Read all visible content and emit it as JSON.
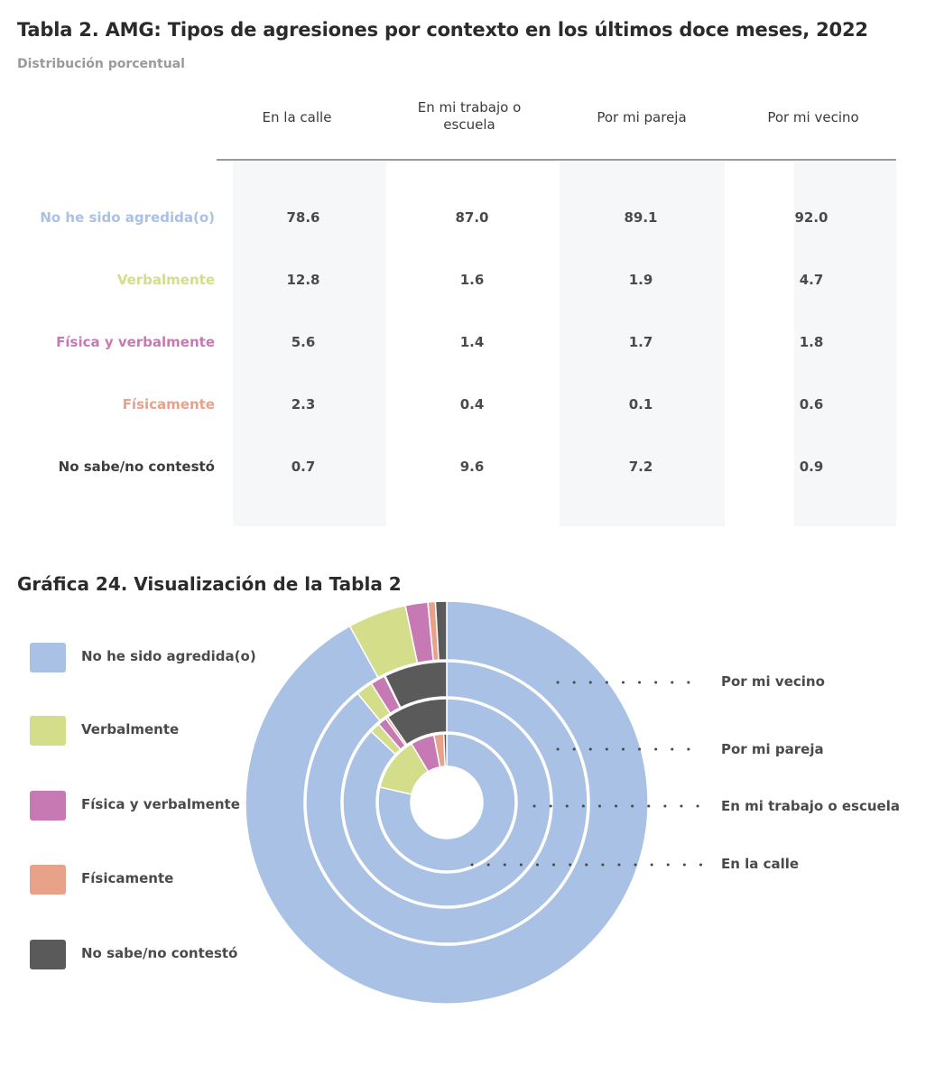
{
  "table": {
    "title": "Tabla 2. AMG: Tipos de agresiones por contexto en los últimos doce meses, 2022",
    "subtitle": "Distribución porcentual",
    "columns": [
      "En la calle",
      "En mi trabajo o escuela",
      "Por mi pareja",
      "Por mi vecino"
    ],
    "rows": [
      {
        "label": "No he sido agredida(o)",
        "color": "#a9c1e4",
        "values": [
          "78.6",
          "87.0",
          "89.1",
          "92.0"
        ]
      },
      {
        "label": "Verbalmente",
        "color": "#d3dd8a",
        "values": [
          "12.8",
          "1.6",
          "1.9",
          "4.7"
        ]
      },
      {
        "label": "Física y verbalmente",
        "color": "#c779b4",
        "values": [
          "5.6",
          "1.4",
          "1.7",
          "1.8"
        ]
      },
      {
        "label": "Físicamente",
        "color": "#e9a28a",
        "values": [
          "2.3",
          "0.4",
          "0.1",
          "0.6"
        ]
      },
      {
        "label": "No sabe/no contestó",
        "color": "#3d3d3d",
        "values": [
          "0.7",
          "9.6",
          "7.2",
          "0.9"
        ]
      }
    ]
  },
  "chart_title": "Gráfica 24. Visualización de la Tabla 2",
  "colors": {
    "no_agredida": "#a9c1e4",
    "verbalmente": "#d3dd8a",
    "fisica_verbal": "#c779b4",
    "fisicamente": "#e9a28a",
    "no_sabe": "#5a5a5a",
    "ring_label_text": "#4a4a4a"
  },
  "chart_data": {
    "type": "pie",
    "variant": "multi-ring donut",
    "title": "Gráfica 24. Visualización de la Tabla 2",
    "categories": [
      "No he sido agredida(o)",
      "Verbalmente",
      "Física y verbalmente",
      "Físicamente",
      "No sabe/no contestó"
    ],
    "series": [
      {
        "name": "En la calle",
        "ring": "innermost",
        "values": [
          78.6,
          12.8,
          5.6,
          2.3,
          0.7
        ]
      },
      {
        "name": "En mi trabajo o escuela",
        "ring": "second",
        "values": [
          87.0,
          1.6,
          1.4,
          0.4,
          9.6
        ]
      },
      {
        "name": "Por mi pareja",
        "ring": "third",
        "values": [
          89.1,
          1.9,
          1.7,
          0.1,
          7.2
        ]
      },
      {
        "name": "Por mi vecino",
        "ring": "outermost",
        "values": [
          92.0,
          4.7,
          1.8,
          0.6,
          0.9
        ]
      }
    ],
    "legend": {
      "position": "left"
    }
  }
}
